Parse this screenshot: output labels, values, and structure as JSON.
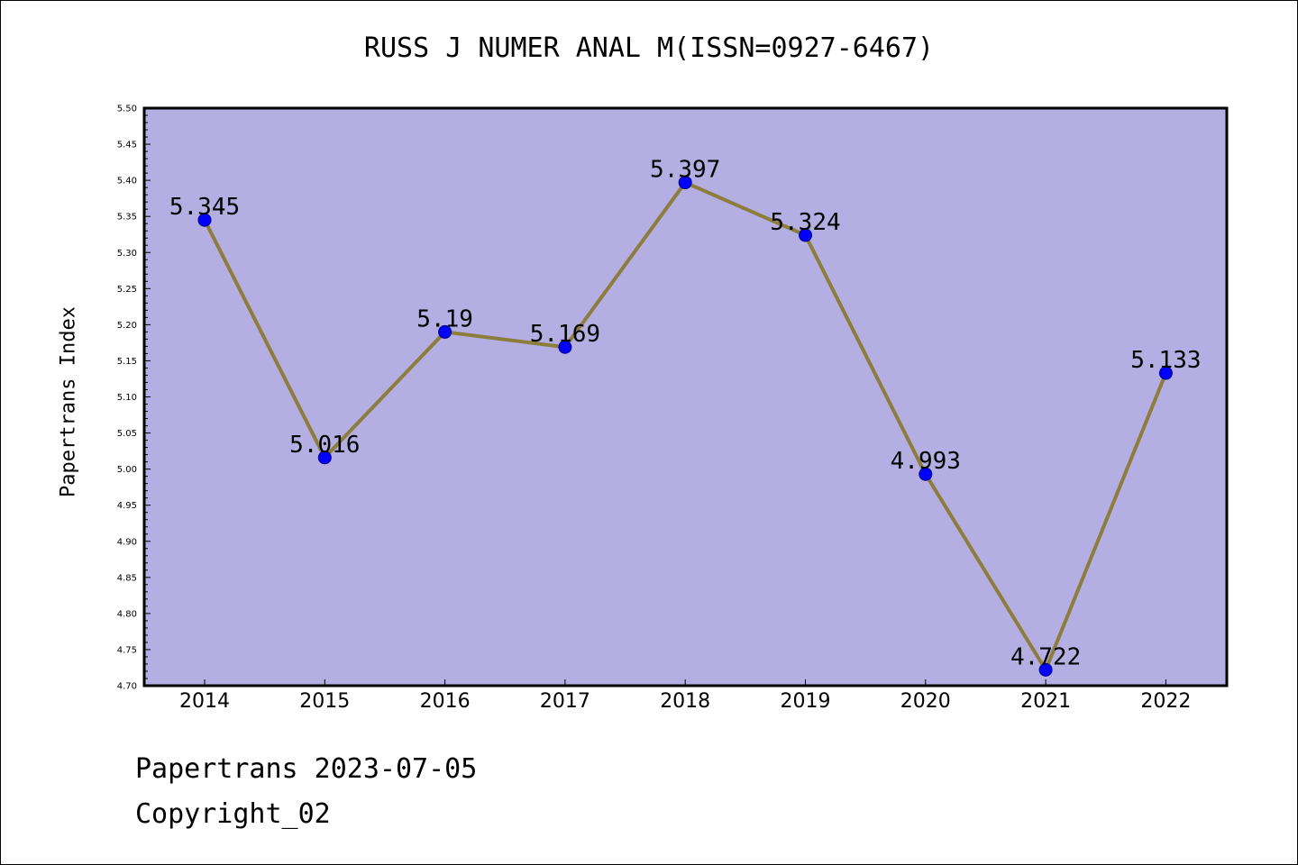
{
  "chart_data": {
    "type": "line",
    "title": "RUSS J NUMER ANAL M(ISSN=0927-6467)",
    "xlabel": "",
    "ylabel": "Papertrans Index",
    "categories": [
      "2014",
      "2015",
      "2016",
      "2017",
      "2018",
      "2019",
      "2020",
      "2021",
      "2022"
    ],
    "values": [
      5.345,
      5.016,
      5.19,
      5.169,
      5.397,
      5.324,
      4.993,
      4.722,
      5.133
    ],
    "value_labels": [
      "5.345",
      "5.016",
      "5.19",
      "5.169",
      "5.397",
      "5.324",
      "4.993",
      "4.722",
      "5.133"
    ],
    "ylim": [
      4.7,
      5.5
    ],
    "yticks": [
      "4.70",
      "4.75",
      "4.80",
      "4.85",
      "4.90",
      "4.95",
      "5.00",
      "5.05",
      "5.10",
      "5.15",
      "5.20",
      "5.25",
      "5.30",
      "5.35",
      "5.40",
      "5.45",
      "5.50"
    ],
    "grid": false,
    "legend": "none",
    "colors": {
      "plot_background": "#b4aee2",
      "line": "#8b7d3c",
      "marker": "#0000ff",
      "axis": "#000000"
    }
  },
  "footer": {
    "date_line": "Papertrans 2023-07-05",
    "copyright_line": "Copyright_02"
  }
}
